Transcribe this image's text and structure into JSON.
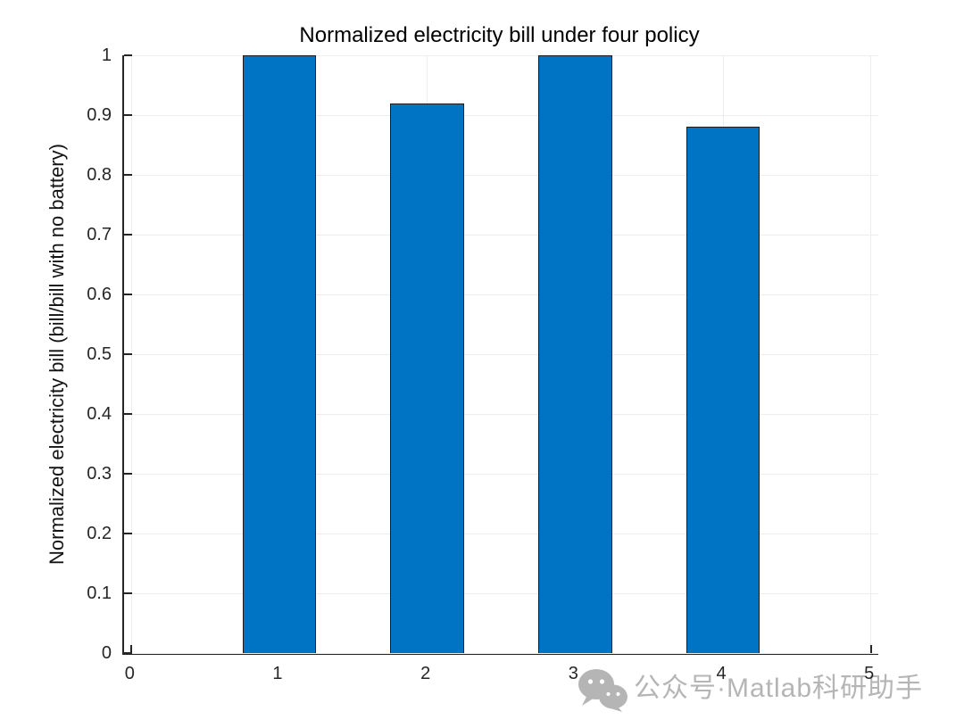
{
  "chart_data": {
    "type": "bar",
    "title": "Normalized electricity bill under four policy",
    "ylabel": "Normalized electricity bill (bill/bill with no battery)",
    "xlabel": "",
    "categories": [
      1,
      2,
      3,
      4
    ],
    "values": [
      1.0,
      0.92,
      1.0,
      0.88
    ],
    "bar_width": 0.5,
    "xlim": [
      -0.05,
      5.05
    ],
    "ylim": [
      0,
      1
    ],
    "xticks": [
      0,
      1,
      2,
      3,
      4,
      5
    ],
    "xtick_labels": [
      "0",
      "1",
      "2",
      "3",
      "4",
      "5"
    ],
    "yticks": [
      0,
      0.1,
      0.2,
      0.3,
      0.4,
      0.5,
      0.6,
      0.7,
      0.8,
      0.9,
      1
    ],
    "ytick_labels": [
      "0",
      "0.1",
      "0.2",
      "0.3",
      "0.4",
      "0.5",
      "0.6",
      "0.7",
      "0.8",
      "0.9",
      "1"
    ],
    "grid": true,
    "legend_position": "none",
    "bar_color": "#0074c4",
    "bar_edge_color": "#1c1c1c",
    "axis_color": "#262626",
    "grid_color": "#ededed",
    "tick_label_color": "#262626",
    "title_color": "#000000"
  },
  "watermark": {
    "icon": "wechat-icon",
    "text": "公众号·Matlab科研助手",
    "color": "#b5b5b5"
  }
}
